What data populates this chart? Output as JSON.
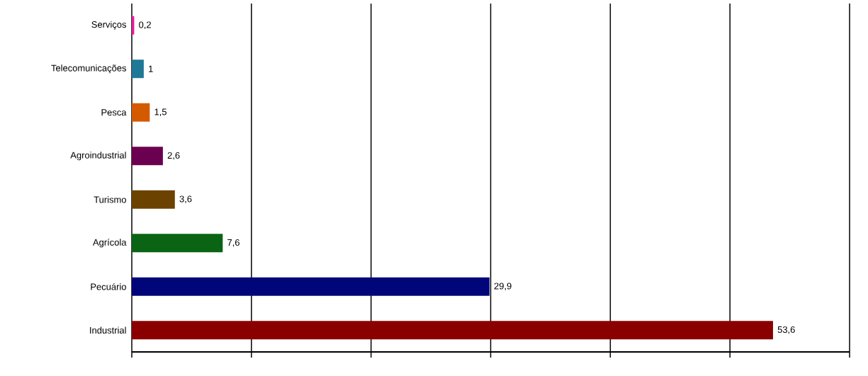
{
  "chart_data": {
    "type": "bar",
    "orientation": "horizontal",
    "categories": [
      "Serviços",
      "Telecomunicações",
      "Pesca",
      "Agroindustrial",
      "Turismo",
      "Agrícola",
      "Pecuário",
      "Industrial"
    ],
    "values": [
      0.2,
      1,
      1.5,
      2.6,
      3.6,
      7.6,
      29.9,
      53.6
    ],
    "value_labels": [
      "0,2",
      "1",
      "1,5",
      "2,6",
      "3,6",
      "7,6",
      "29,9",
      "53,6"
    ],
    "colors": [
      "#e8179a",
      "#1f7896",
      "#d45a00",
      "#6b0050",
      "#6b4200",
      "#0a6414",
      "#00067a",
      "#8a0000"
    ],
    "xlim": [
      0,
      60
    ],
    "xticks": [
      {
        "value": 0,
        "label": null
      },
      {
        "value": 10,
        "label": null
      },
      {
        "value": 20,
        "label": null
      },
      {
        "value": 30,
        "label": null
      },
      {
        "value": 40,
        "label": null
      },
      {
        "value": 50,
        "label": null
      },
      {
        "value": 60,
        "label": null
      }
    ],
    "grid": "x"
  }
}
